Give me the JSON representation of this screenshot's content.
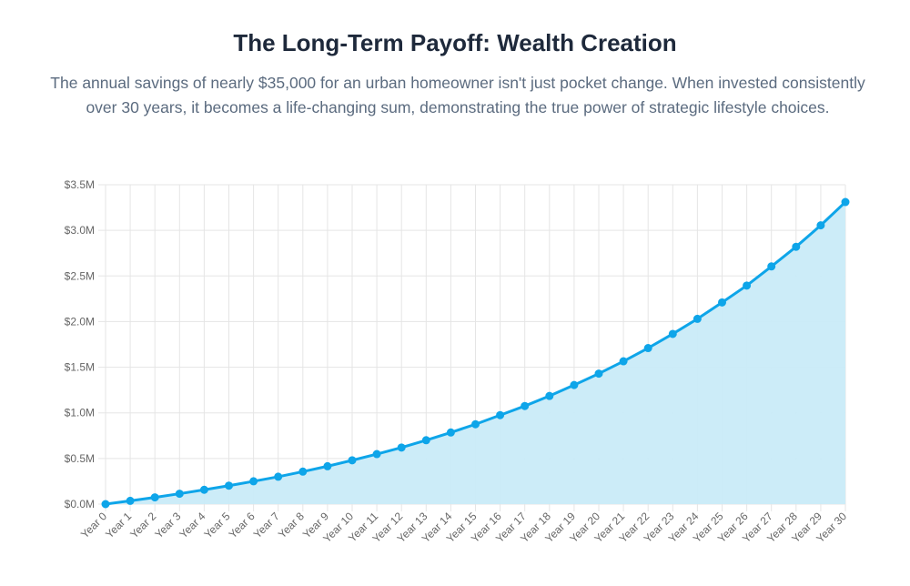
{
  "header": {
    "title": "The Long-Term Payoff: Wealth Creation",
    "subtitle": "The annual savings of nearly $35,000 for an urban homeowner isn't just pocket change. When invested consistently over 30 years, it becomes a life-changing sum, demonstrating the true power of strategic lifestyle choices."
  },
  "chart_data": {
    "type": "area",
    "categories": [
      "Year 0",
      "Year 1",
      "Year 2",
      "Year 3",
      "Year 4",
      "Year 5",
      "Year 6",
      "Year 7",
      "Year 8",
      "Year 9",
      "Year 10",
      "Year 11",
      "Year 12",
      "Year 13",
      "Year 14",
      "Year 15",
      "Year 16",
      "Year 17",
      "Year 18",
      "Year 19",
      "Year 20",
      "Year 21",
      "Year 22",
      "Year 23",
      "Year 24",
      "Year 25",
      "Year 26",
      "Year 27",
      "Year 28",
      "Year 29",
      "Year 30"
    ],
    "series": [
      {
        "values": [
          0,
          36000,
          74000,
          114000,
          157000,
          202000,
          250000,
          300000,
          356000,
          415000,
          480000,
          548000,
          620000,
          700000,
          785000,
          875000,
          975000,
          1075000,
          1185000,
          1305000,
          1430000,
          1565000,
          1710000,
          1865000,
          2030000,
          2210000,
          2395000,
          2605000,
          2820000,
          3055000,
          3310000
        ]
      }
    ],
    "yticks": [
      "$0.0M",
      "$0.5M",
      "$1.0M",
      "$1.5M",
      "$2.0M",
      "$2.5M",
      "$3.0M",
      "$3.5M"
    ],
    "ylim": [
      0,
      3500000
    ],
    "grid": true,
    "legend": "none",
    "colors": {
      "line": "#0ea5e9",
      "fill": "#c9ebf8",
      "grid": "#e5e5e5"
    }
  }
}
